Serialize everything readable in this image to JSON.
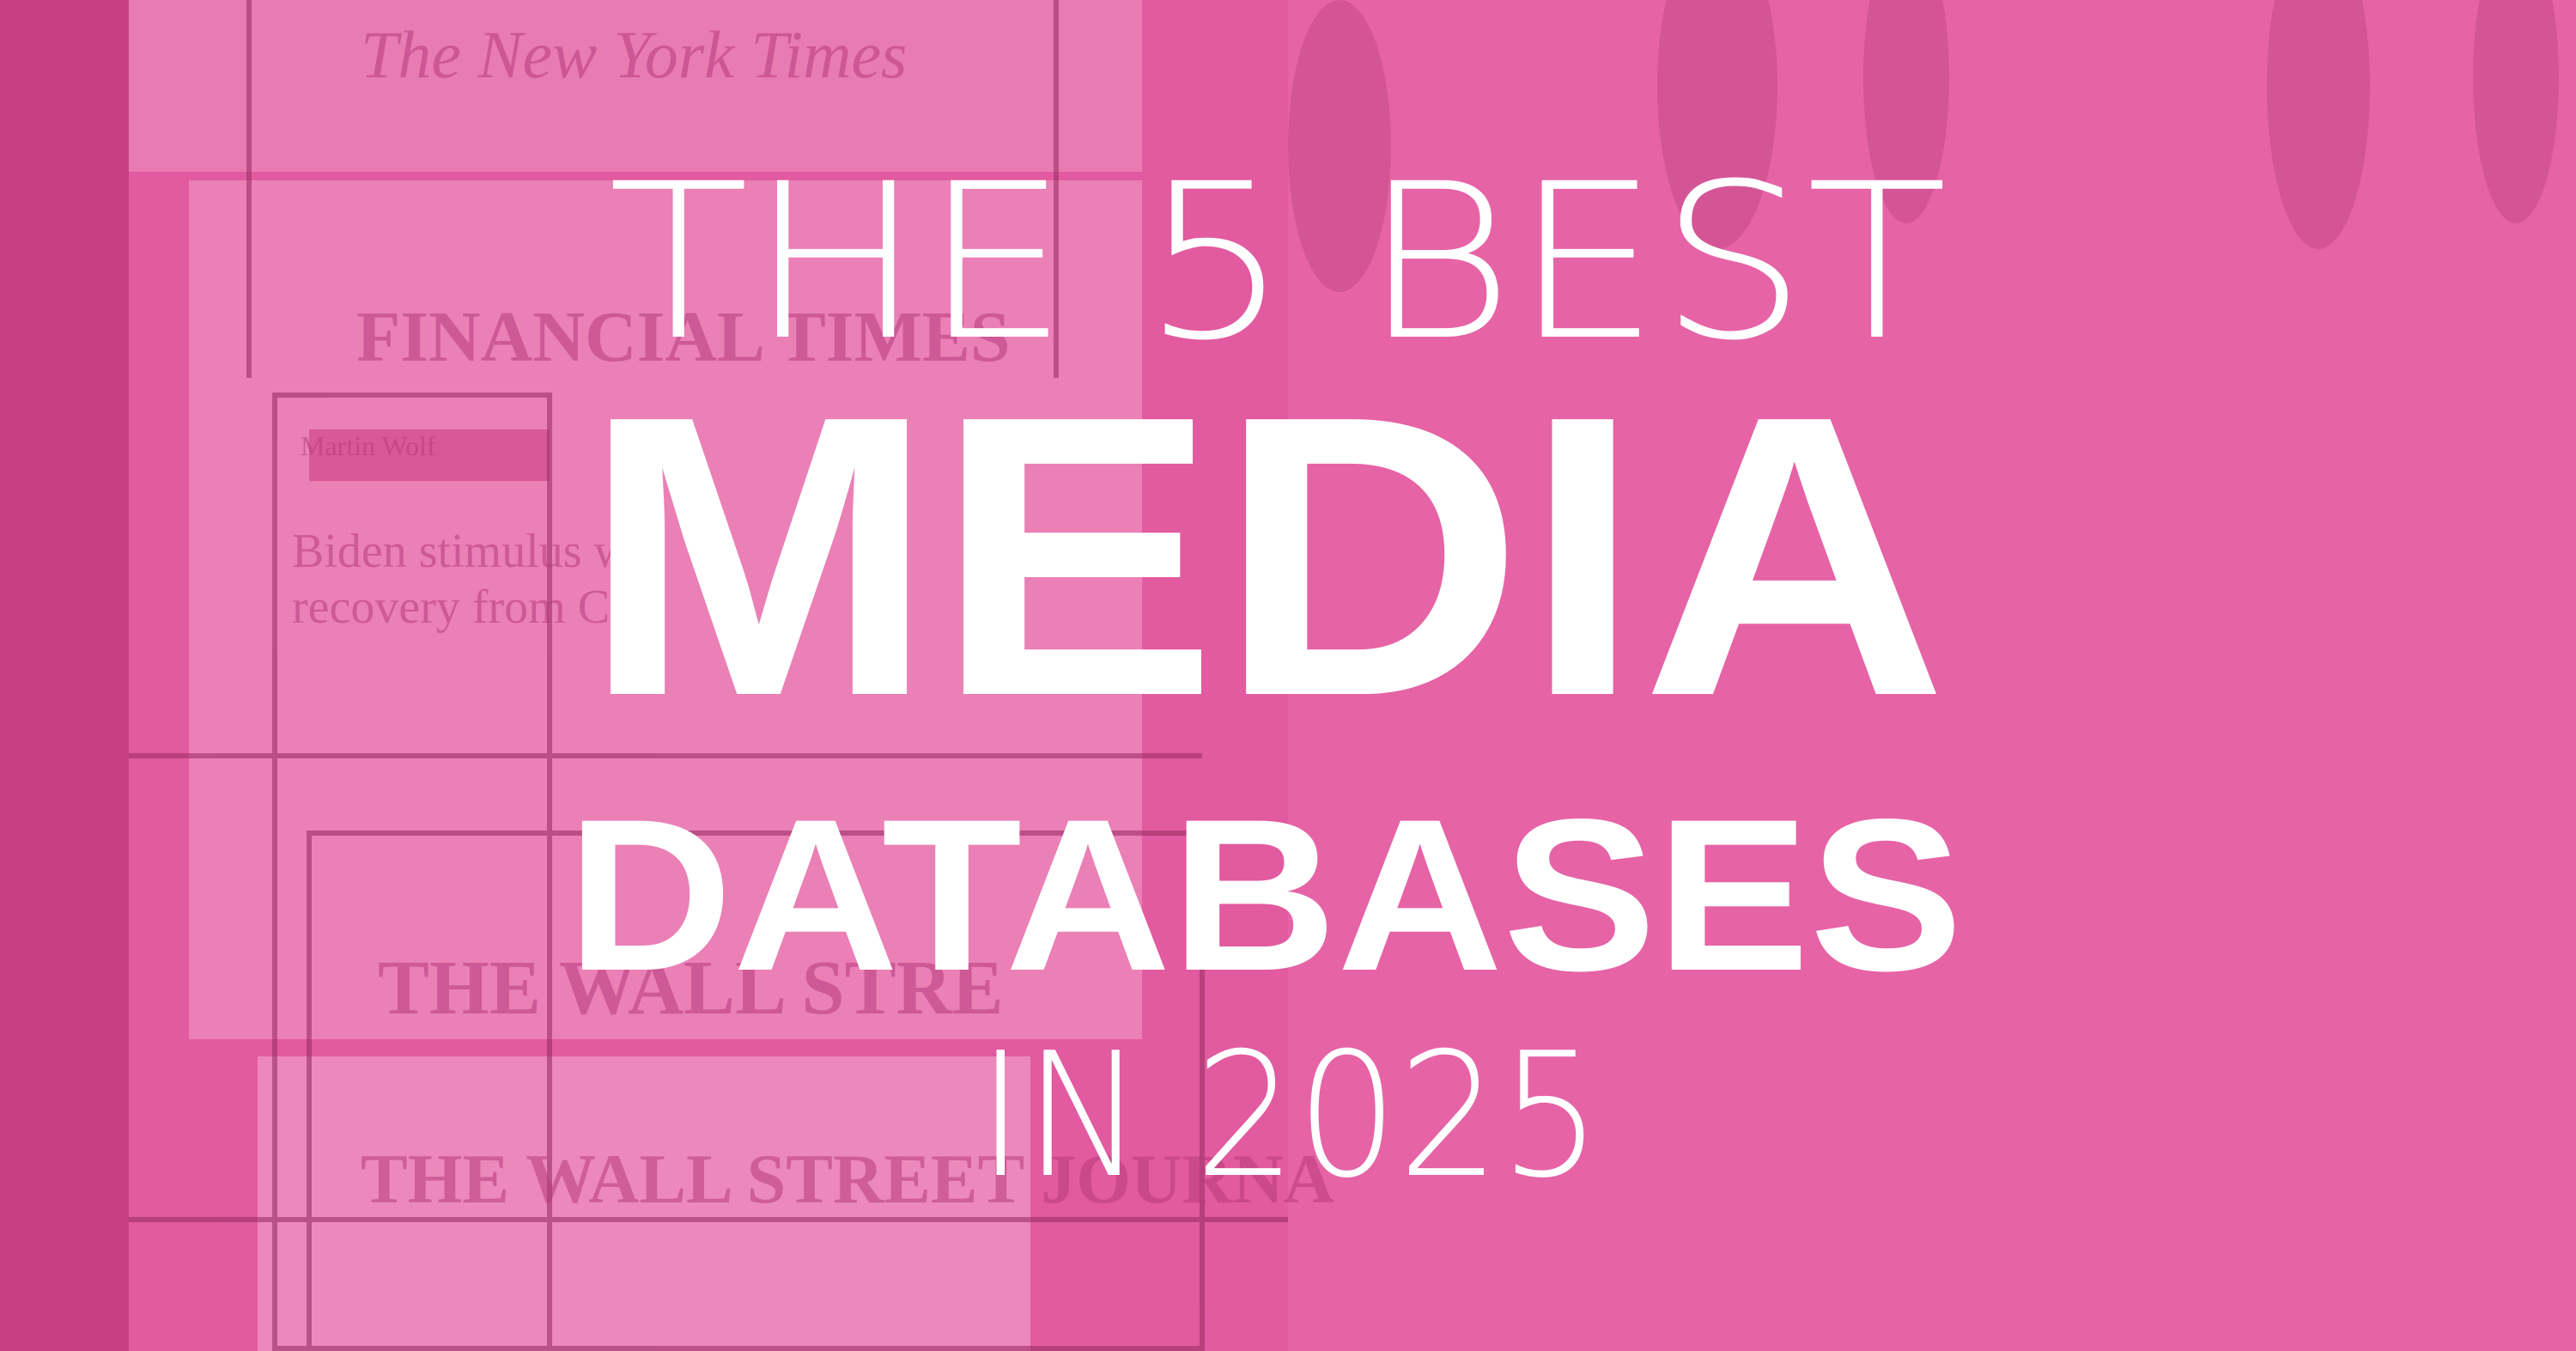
{
  "headline": {
    "line1": "THE 5 BEST",
    "line2": "MEDIA",
    "line3": "DATABASES",
    "line4": "IN 2025"
  },
  "background_text": {
    "nyt": "The New York Times",
    "ft": "FINANCIAL TIMES",
    "byline": "Martin Wolf",
    "headline_a": "Biden stimulus w",
    "headline_b": "recovery from Co",
    "wsj_a": "THE WALL STRE",
    "wsj_b": "THE WALL STREET JOURNA"
  }
}
